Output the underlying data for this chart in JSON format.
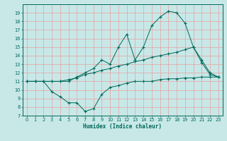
{
  "xlabel": "Humidex (Indice chaleur)",
  "bg_color": "#c8e8e8",
  "grid_color": "#e8a0a0",
  "line_color": "#006858",
  "xlim": [
    -0.5,
    23.5
  ],
  "ylim": [
    7,
    20
  ],
  "yticks": [
    7,
    8,
    9,
    10,
    11,
    12,
    13,
    14,
    15,
    16,
    17,
    18,
    19
  ],
  "xticks": [
    0,
    1,
    2,
    3,
    4,
    5,
    6,
    7,
    8,
    9,
    10,
    11,
    12,
    13,
    14,
    15,
    16,
    17,
    18,
    19,
    20,
    21,
    22,
    23
  ],
  "curve_max": {
    "x": [
      0,
      1,
      2,
      3,
      4,
      5,
      6,
      7,
      8,
      9,
      10,
      11,
      12,
      13,
      14,
      15,
      16,
      17,
      18,
      19,
      20,
      21,
      22,
      23
    ],
    "y": [
      11,
      11,
      11,
      11,
      11,
      11,
      11.5,
      12,
      12.5,
      13.5,
      13,
      15,
      16.5,
      13.5,
      15,
      17.5,
      18.5,
      19.2,
      19.0,
      17.8,
      15,
      13.5,
      12,
      11.5
    ]
  },
  "curve_mean": {
    "x": [
      0,
      1,
      2,
      3,
      4,
      5,
      6,
      7,
      8,
      9,
      10,
      11,
      12,
      13,
      14,
      15,
      16,
      17,
      18,
      19,
      20,
      21,
      22,
      23
    ],
    "y": [
      11,
      11,
      11,
      11,
      11,
      11.2,
      11.4,
      11.8,
      12.0,
      12.3,
      12.5,
      12.8,
      13.0,
      13.3,
      13.5,
      13.8,
      14.0,
      14.2,
      14.4,
      14.7,
      15.0,
      13.2,
      11.8,
      11.5
    ]
  },
  "curve_min": {
    "x": [
      0,
      1,
      2,
      3,
      4,
      5,
      6,
      7,
      8,
      9,
      10,
      11,
      12,
      13,
      14,
      15,
      16,
      17,
      18,
      19,
      20,
      21,
      22,
      23
    ],
    "y": [
      11,
      11,
      11,
      9.8,
      9.2,
      8.5,
      8.5,
      7.5,
      7.8,
      9.5,
      10.3,
      10.5,
      10.8,
      11,
      11,
      11,
      11.2,
      11.3,
      11.3,
      11.4,
      11.4,
      11.5,
      11.5,
      11.5
    ]
  }
}
